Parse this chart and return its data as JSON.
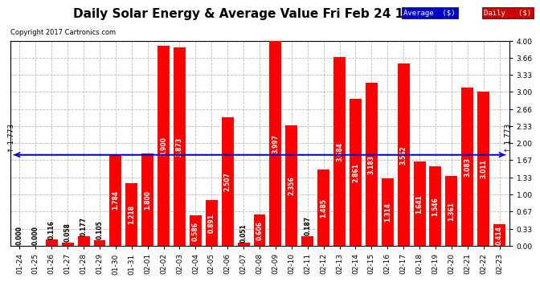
{
  "title": "Daily Solar Energy & Average Value Fri Feb 24 17:22",
  "copyright": "Copyright 2017 Cartronics.com",
  "categories": [
    "01-24",
    "01-25",
    "01-26",
    "01-27",
    "01-28",
    "01-29",
    "01-30",
    "01-31",
    "02-01",
    "02-02",
    "02-03",
    "02-04",
    "02-05",
    "02-06",
    "02-07",
    "02-08",
    "02-09",
    "02-10",
    "02-11",
    "02-12",
    "02-13",
    "02-14",
    "02-15",
    "02-16",
    "02-17",
    "02-18",
    "02-19",
    "02-20",
    "02-21",
    "02-22",
    "02-23"
  ],
  "values": [
    0.0,
    0.0,
    0.116,
    0.058,
    0.177,
    0.105,
    1.784,
    1.218,
    1.8,
    3.9,
    3.873,
    0.586,
    0.891,
    2.507,
    0.051,
    0.606,
    3.997,
    2.356,
    0.187,
    1.485,
    3.684,
    2.861,
    3.183,
    1.314,
    3.562,
    1.641,
    1.546,
    1.361,
    3.083,
    3.011,
    0.414
  ],
  "average": 1.773,
  "bar_color": "#ff0000",
  "avg_line_color": "#0000cc",
  "background_color": "#ffffff",
  "grid_color": "#bbbbbb",
  "ylim": [
    0,
    4.0
  ],
  "yticks": [
    0.0,
    0.33,
    0.67,
    1.0,
    1.33,
    1.67,
    2.0,
    2.33,
    2.66,
    3.0,
    3.33,
    3.66,
    4.0
  ],
  "legend_avg_bg": "#0000cc",
  "legend_daily_bg": "#cc0000",
  "avg_label": "Average  ($)",
  "daily_label": "Daily   ($)",
  "avg_annotation": "1.773",
  "title_fontsize": 11,
  "tick_fontsize": 6.5,
  "label_fontsize": 5.5,
  "bar_width": 0.75
}
